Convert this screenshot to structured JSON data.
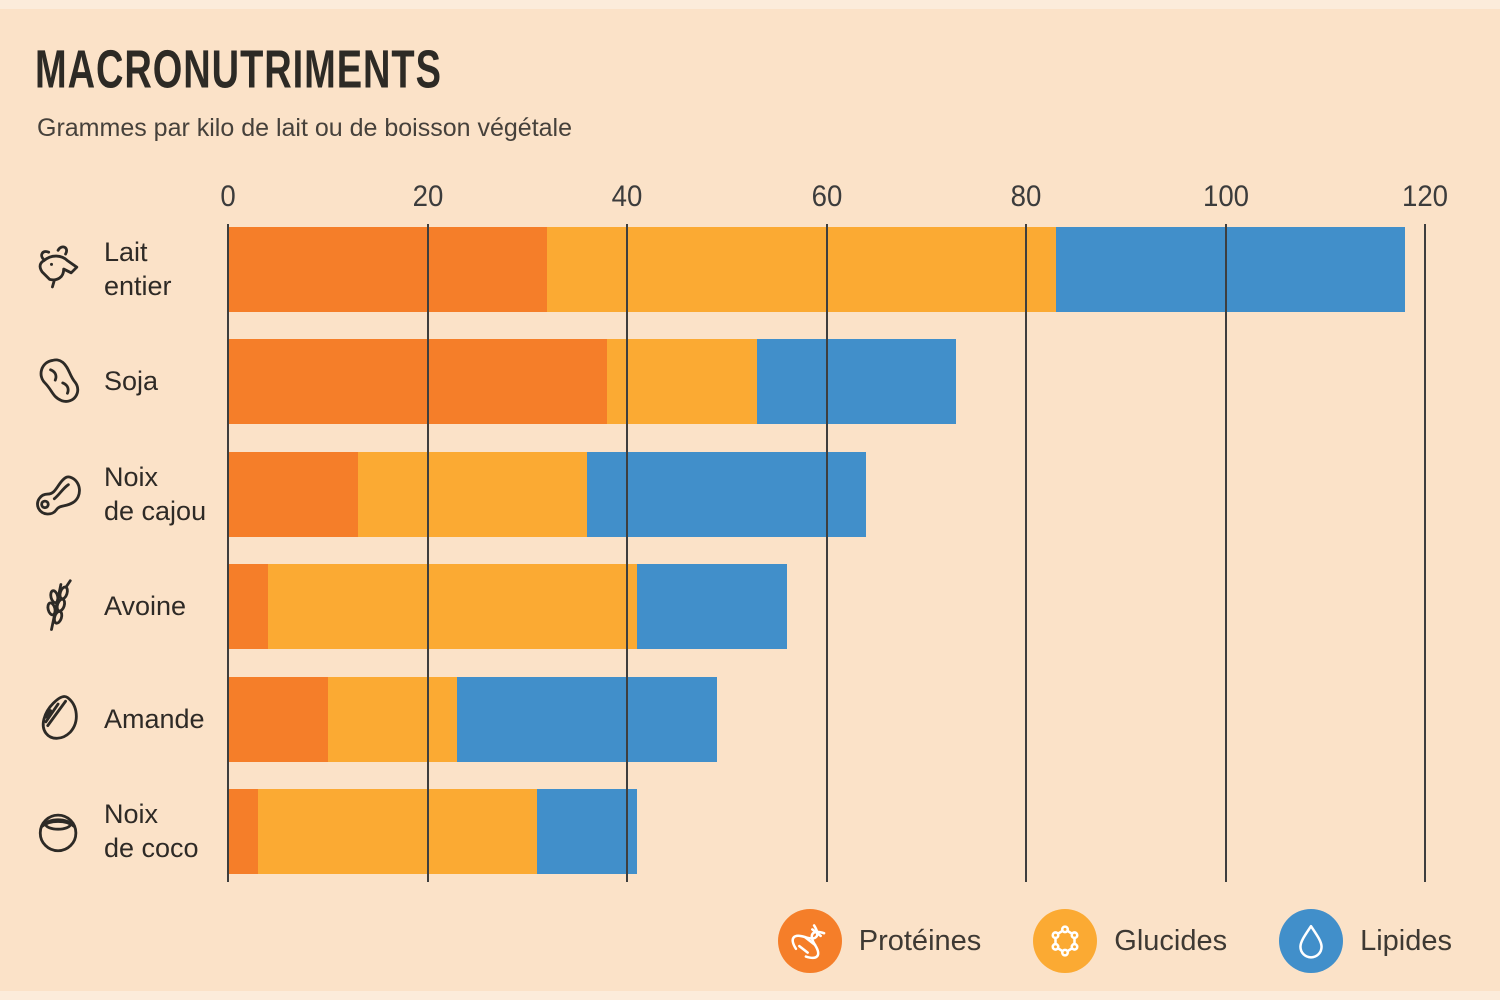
{
  "page": {
    "title": "MACRONUTRIMENTS",
    "subtitle": "Grammes par kilo de lait ou de boisson végétale"
  },
  "chart_data": {
    "type": "bar",
    "orientation": "horizontal",
    "stacked": true,
    "title": "MACRONUTRIMENTS",
    "subtitle": "Grammes par kilo de lait ou de boisson végétale",
    "unit": "grammes",
    "xlim": [
      0,
      120
    ],
    "ticks": [
      0,
      20,
      40,
      60,
      80,
      100,
      120
    ],
    "grid": "vertical dark lines drawn over bars",
    "legend_position": "bottom-right",
    "categories": [
      "Lait entier",
      "Soja",
      "Noix de cajou",
      "Avoine",
      "Amande",
      "Noix de coco"
    ],
    "category_label_lines": [
      [
        "Lait",
        "entier"
      ],
      [
        "Soja",
        ""
      ],
      [
        "Noix",
        "de cajou"
      ],
      [
        "Avoine",
        ""
      ],
      [
        "Amande",
        ""
      ],
      [
        "Noix",
        "de coco"
      ]
    ],
    "category_icons": [
      "goat-icon",
      "soybean-icon",
      "cashew-icon",
      "oat-icon",
      "almond-icon",
      "coconut-icon"
    ],
    "series": [
      {
        "name": "Protéines",
        "color": "#f57e29",
        "icon": "dna-icon",
        "values": [
          32,
          38,
          13,
          4,
          10,
          3
        ]
      },
      {
        "name": "Glucides",
        "color": "#fbaa33",
        "icon": "molecule-icon",
        "values": [
          51,
          15,
          23,
          37,
          13,
          28
        ]
      },
      {
        "name": "Lipides",
        "color": "#418fca",
        "icon": "droplet-icon",
        "values": [
          35,
          20,
          28,
          15,
          26,
          10
        ]
      }
    ],
    "totals": [
      118,
      73,
      64,
      56,
      49,
      41
    ]
  },
  "colors": {
    "background": "#fbe2c8",
    "edge_strip": "#fcecdb",
    "gridline": "#3e3e3e",
    "proteines": "#f57e29",
    "glucides": "#fbaa33",
    "lipides": "#418fca",
    "title_text": "#2d2a25",
    "subtitle_text": "#46413b",
    "label_text": "#2e2a26"
  }
}
